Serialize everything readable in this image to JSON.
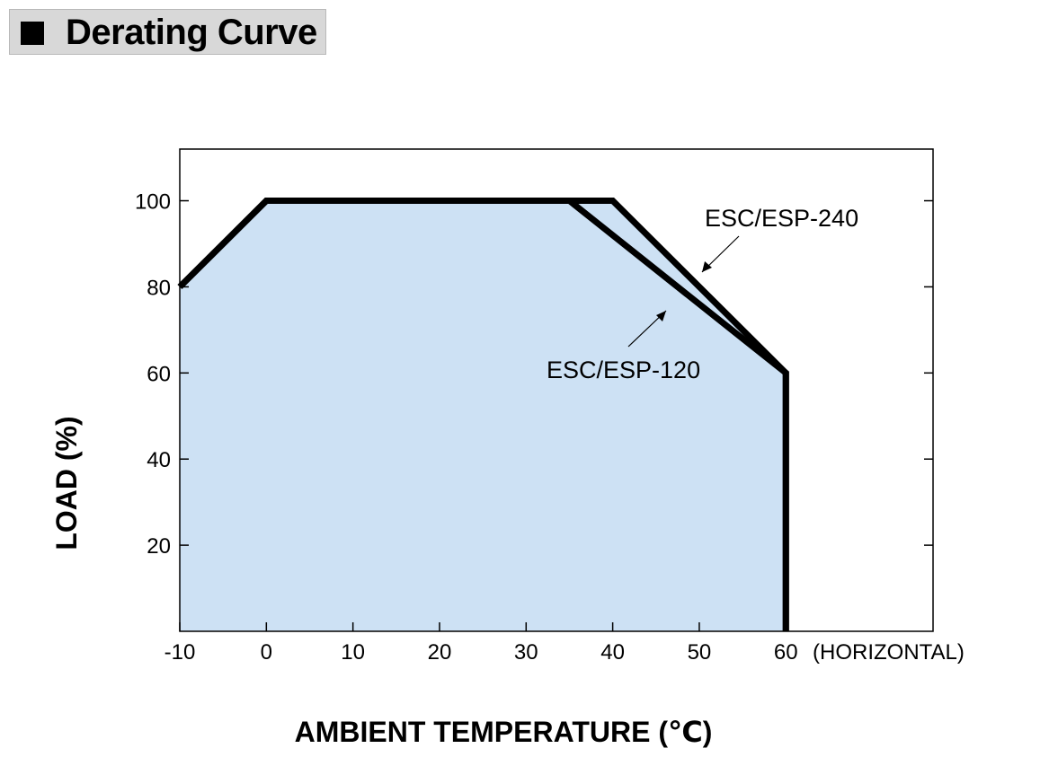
{
  "header": {
    "title": "Derating Curve"
  },
  "chart_data": {
    "type": "line",
    "title": "Derating Curve",
    "xlabel": "AMBIENT TEMPERATURE (℃)",
    "ylabel": "LOAD (%)",
    "x_suffix": "(HORIZONTAL)",
    "xlim": [
      -10,
      77
    ],
    "ylim": [
      0,
      112
    ],
    "x_ticks": [
      -10,
      0,
      10,
      20,
      30,
      40,
      50,
      60
    ],
    "y_ticks": [
      20,
      40,
      60,
      80,
      100
    ],
    "series": [
      {
        "name": "ESC/ESP-120",
        "x": [
          -10,
          0,
          35,
          60,
          60
        ],
        "y": [
          80,
          100,
          100,
          60,
          0
        ]
      },
      {
        "name": "ESC/ESP-240",
        "x": [
          -10,
          0,
          40,
          60,
          60
        ],
        "y": [
          80,
          100,
          100,
          60,
          0
        ]
      }
    ],
    "fill_color": "#cde1f4",
    "line_color": "#000000",
    "grid": false
  }
}
